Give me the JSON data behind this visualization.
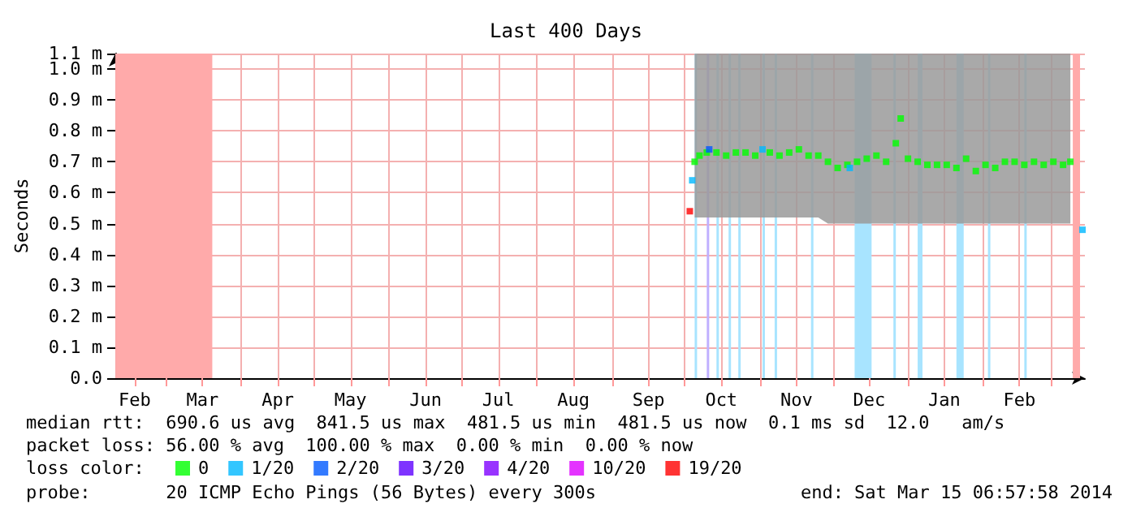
{
  "chart_data": {
    "type": "scatter",
    "title": "Last 400 Days",
    "ylabel": "Seconds",
    "legend_title": "loss color:",
    "legend": "bottom left",
    "marker": "square",
    "grid": true,
    "xlim": [
      "2013-02-08",
      "2014-03-15"
    ],
    "xticks": [
      {
        "value": "2013-02-16",
        "label": "Feb"
      },
      {
        "value": "2013-03-01",
        "label": null
      },
      {
        "value": "2013-03-16",
        "label": "Mar"
      },
      {
        "value": "2013-04-01",
        "label": null
      },
      {
        "value": "2013-04-16",
        "label": "Apr"
      },
      {
        "value": "2013-05-01",
        "label": null
      },
      {
        "value": "2013-05-16",
        "label": "May"
      },
      {
        "value": "2013-06-01",
        "label": null
      },
      {
        "value": "2013-06-16",
        "label": "Jun"
      },
      {
        "value": "2013-07-01",
        "label": null
      },
      {
        "value": "2013-07-16",
        "label": "Jul"
      },
      {
        "value": "2013-08-01",
        "label": null
      },
      {
        "value": "2013-08-16",
        "label": "Aug"
      },
      {
        "value": "2013-09-01",
        "label": null
      },
      {
        "value": "2013-09-16",
        "label": "Sep"
      },
      {
        "value": "2013-10-01",
        "label": null
      },
      {
        "value": "2013-10-16",
        "label": "Oct"
      },
      {
        "value": "2013-11-01",
        "label": null
      },
      {
        "value": "2013-11-16",
        "label": "Nov"
      },
      {
        "value": "2013-12-01",
        "label": null
      },
      {
        "value": "2013-12-16",
        "label": "Dec"
      },
      {
        "value": "2014-01-01",
        "label": null
      },
      {
        "value": "2014-01-16",
        "label": "Jan"
      },
      {
        "value": "2014-02-01",
        "label": null
      },
      {
        "value": "2014-02-16",
        "label": "Feb"
      },
      {
        "value": "2014-03-01",
        "label": null
      }
    ],
    "ylim": [
      0,
      1.05
    ],
    "yticks": [
      {
        "value": 0,
        "label": "0.0"
      },
      {
        "value": 0.1,
        "label": "0.1 m"
      },
      {
        "value": 0.2,
        "label": "0.2 m"
      },
      {
        "value": 0.3,
        "label": "0.3 m"
      },
      {
        "value": 0.4,
        "label": "0.4 m"
      },
      {
        "value": 0.5,
        "label": "0.5 m"
      },
      {
        "value": 0.6,
        "label": "0.6 m"
      },
      {
        "value": 0.7,
        "label": "0.7 m"
      },
      {
        "value": 0.8,
        "label": "0.8 m"
      },
      {
        "value": 0.9,
        "label": "0.9 m"
      },
      {
        "value": 1.0,
        "label": "1.0 m"
      },
      {
        "value": 1.05,
        "label": "1.1 m"
      }
    ],
    "series": [
      {
        "name": "0",
        "color": "#00ff00",
        "x": [
          "2013-10-05",
          "2013-10-07",
          "2013-10-10",
          "2013-10-14",
          "2013-10-18",
          "2013-10-22",
          "2013-10-26",
          "2013-10-30",
          "2013-11-05",
          "2013-11-09",
          "2013-11-13",
          "2013-11-17",
          "2013-11-21",
          "2013-11-25",
          "2013-11-29",
          "2013-12-03",
          "2013-12-07",
          "2013-12-11",
          "2013-12-15",
          "2013-12-19",
          "2013-12-23",
          "2013-12-27",
          "2013-12-29",
          "2014-01-01",
          "2014-01-05",
          "2014-01-09",
          "2014-01-13",
          "2014-01-17",
          "2014-01-21",
          "2014-01-25",
          "2014-01-29",
          "2014-02-02",
          "2014-02-06",
          "2014-02-10",
          "2014-02-14",
          "2014-02-18",
          "2014-02-22",
          "2014-02-26",
          "2014-03-02",
          "2014-03-06",
          "2014-03-09"
        ],
        "values": [
          0.7,
          0.72,
          0.73,
          0.73,
          0.72,
          0.73,
          0.73,
          0.72,
          0.73,
          0.72,
          0.73,
          0.74,
          0.72,
          0.72,
          0.7,
          0.68,
          0.69,
          0.7,
          0.71,
          0.72,
          0.7,
          0.76,
          0.84,
          0.71,
          0.7,
          0.69,
          0.69,
          0.69,
          0.68,
          0.71,
          0.67,
          0.69,
          0.68,
          0.7,
          0.7,
          0.69,
          0.7,
          0.69,
          0.7,
          0.69,
          0.7
        ],
        "lower": [
          0.52,
          0.52,
          0.52,
          0.52,
          0.52,
          0.52,
          0.52,
          0.52,
          0.52,
          0.52,
          0.52,
          0.52,
          0.52,
          0.52,
          0.5,
          0.5,
          0.5,
          0.5,
          0.5,
          0.5,
          0.5,
          0.5,
          0.5,
          0.5,
          0.5,
          0.5,
          0.5,
          0.5,
          0.5,
          0.5,
          0.5,
          0.5,
          0.5,
          0.5,
          0.5,
          0.5,
          0.5,
          0.5,
          0.5,
          0.5,
          0.5
        ],
        "upper": [
          1.05,
          1.05,
          1.05,
          1.05,
          1.05,
          1.05,
          1.05,
          1.05,
          1.05,
          1.05,
          1.05,
          1.05,
          1.05,
          1.05,
          1.05,
          1.05,
          1.05,
          1.05,
          1.05,
          1.05,
          1.05,
          1.05,
          1.05,
          1.05,
          1.05,
          1.05,
          1.05,
          1.05,
          1.05,
          1.05,
          1.05,
          1.05,
          1.05,
          1.05,
          1.05,
          1.05,
          1.05,
          1.05,
          1.05,
          1.05,
          1.05
        ]
      },
      {
        "name": "1/20",
        "color": "#00b8ff",
        "x": [
          "2013-10-04",
          "2013-11-02",
          "2013-12-08",
          "2014-03-14"
        ],
        "values": [
          0.64,
          0.74,
          0.68,
          0.48
        ]
      },
      {
        "name": "2/20",
        "color": "#0059ff",
        "x": [
          "2013-10-11"
        ],
        "values": [
          0.74
        ]
      },
      {
        "name": "3/20",
        "color": "#5e00ff"
      },
      {
        "name": "4/20",
        "color": "#7e00ff"
      },
      {
        "name": "10/20",
        "color": "#dd00ff"
      },
      {
        "name": "19/20",
        "color": "#ff0000",
        "x": [
          "2013-10-03"
        ],
        "values": [
          0.54
        ]
      }
    ],
    "bands": [
      {
        "axis": "x",
        "from": "2013-02-08",
        "to": "2013-03-20",
        "color": "#ffaaaa"
      },
      {
        "axis": "x",
        "from": "2014-03-10",
        "to": "2014-03-13",
        "color": "#ffaaaa"
      },
      {
        "axis": "x",
        "from": "2013-10-05",
        "to": "2013-10-06",
        "color": "#a8e4ff"
      },
      {
        "axis": "x",
        "from": "2013-10-10",
        "to": "2013-10-11",
        "color": "#c0b0ff"
      },
      {
        "axis": "x",
        "from": "2013-10-14",
        "to": "2013-10-15",
        "color": "#a8e4ff"
      },
      {
        "axis": "x",
        "from": "2013-10-19",
        "to": "2013-10-20",
        "color": "#a8e4ff"
      },
      {
        "axis": "x",
        "from": "2013-10-23",
        "to": "2013-10-24",
        "color": "#a8e4ff"
      },
      {
        "axis": "x",
        "from": "2013-11-02",
        "to": "2013-11-03",
        "color": "#a8e4ff"
      },
      {
        "axis": "x",
        "from": "2013-11-07",
        "to": "2013-11-08",
        "color": "#a8e4ff"
      },
      {
        "axis": "x",
        "from": "2013-11-22",
        "to": "2013-11-23",
        "color": "#a8e4ff"
      },
      {
        "axis": "x",
        "from": "2013-12-10",
        "to": "2013-12-17",
        "color": "#a8e4ff"
      },
      {
        "axis": "x",
        "from": "2013-12-26",
        "to": "2013-12-27",
        "color": "#a8e4ff"
      },
      {
        "axis": "x",
        "from": "2014-01-05",
        "to": "2014-01-07",
        "color": "#a8e4ff"
      },
      {
        "axis": "x",
        "from": "2014-01-21",
        "to": "2014-01-24",
        "color": "#a8e4ff"
      },
      {
        "axis": "x",
        "from": "2014-02-03",
        "to": "2014-02-04",
        "color": "#a8e4ff"
      },
      {
        "axis": "x",
        "from": "2014-02-18",
        "to": "2014-02-19",
        "color": "#a8e4ff"
      }
    ],
    "annotations": [
      "median rtt:  690.6 us avg  841.5 us max  481.5 us min  481.5 us now  0.1 ms sd  12.0   am/s",
      "packet loss: 56.00 % avg  100.00 % max  0.00 % min  0.00 % now",
      "probe:       20 ICMP Echo Pings (56 Bytes) every 300s",
      "end: Sat Mar 15 06:57:58 2014"
    ]
  }
}
